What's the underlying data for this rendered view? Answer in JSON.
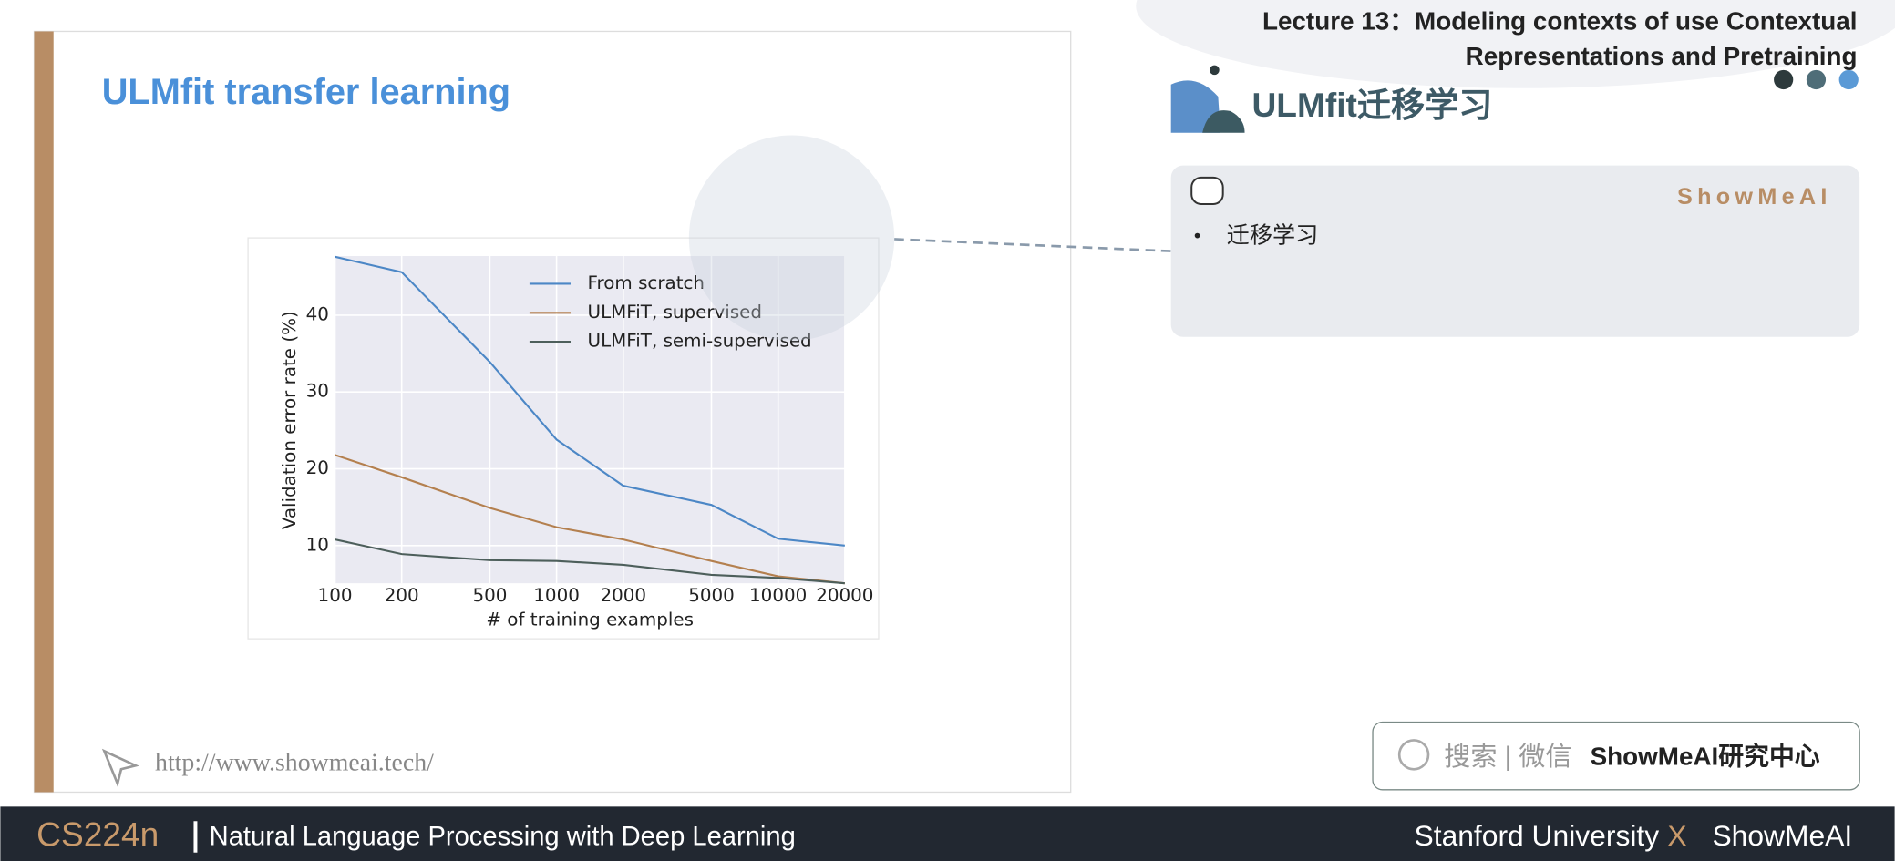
{
  "header": {
    "lines": [
      "Lecture 13：Modeling contexts of use Contextual",
      "Representations and Pretraining"
    ],
    "section_title": "ULMfit迁移学习"
  },
  "slide": {
    "title": "ULMfit transfer learning",
    "url": "http://www.showmeai.tech/"
  },
  "note": {
    "brand": "ShowMeAI",
    "bullets": [
      "迁移学习"
    ]
  },
  "search": {
    "label": "搜索 | 微信",
    "brand": "ShowMeAI研究中心"
  },
  "footer": {
    "course": "CS224n",
    "subtitle": "Natural Language Processing with Deep Learning",
    "credit_left": "Stanford University",
    "x": "X",
    "credit_right": "ShowMeAI"
  },
  "chart_data": {
    "type": "line",
    "xlabel": "# of training examples",
    "ylabel": "Validation error rate (%)",
    "x": [
      100,
      200,
      500,
      1000,
      2000,
      5000,
      10000,
      20000
    ],
    "xscale": "log",
    "xlim": [
      100,
      20000
    ],
    "xticks": [
      100,
      200,
      500,
      1000,
      2000,
      5000,
      10000,
      20000
    ],
    "ylim": [
      5.1,
      47.7
    ],
    "yticks": [
      10,
      20,
      30,
      40
    ],
    "grid": true,
    "legend": "upper right",
    "series": [
      {
        "name": "From scratch",
        "color": "#4c87c6",
        "values": [
          47.6,
          45.6,
          33.9,
          23.8,
          17.8,
          15.3,
          10.9,
          10.0
        ]
      },
      {
        "name": "ULMFiT, supervised",
        "color": "#b4804f",
        "values": [
          21.8,
          18.9,
          14.9,
          12.4,
          10.8,
          8.0,
          6.0,
          5.1
        ]
      },
      {
        "name": "ULMFiT, semi-supervised",
        "color": "#4d5f5b",
        "values": [
          10.8,
          8.9,
          8.1,
          8.0,
          7.5,
          6.2,
          5.8,
          5.1
        ]
      }
    ]
  }
}
